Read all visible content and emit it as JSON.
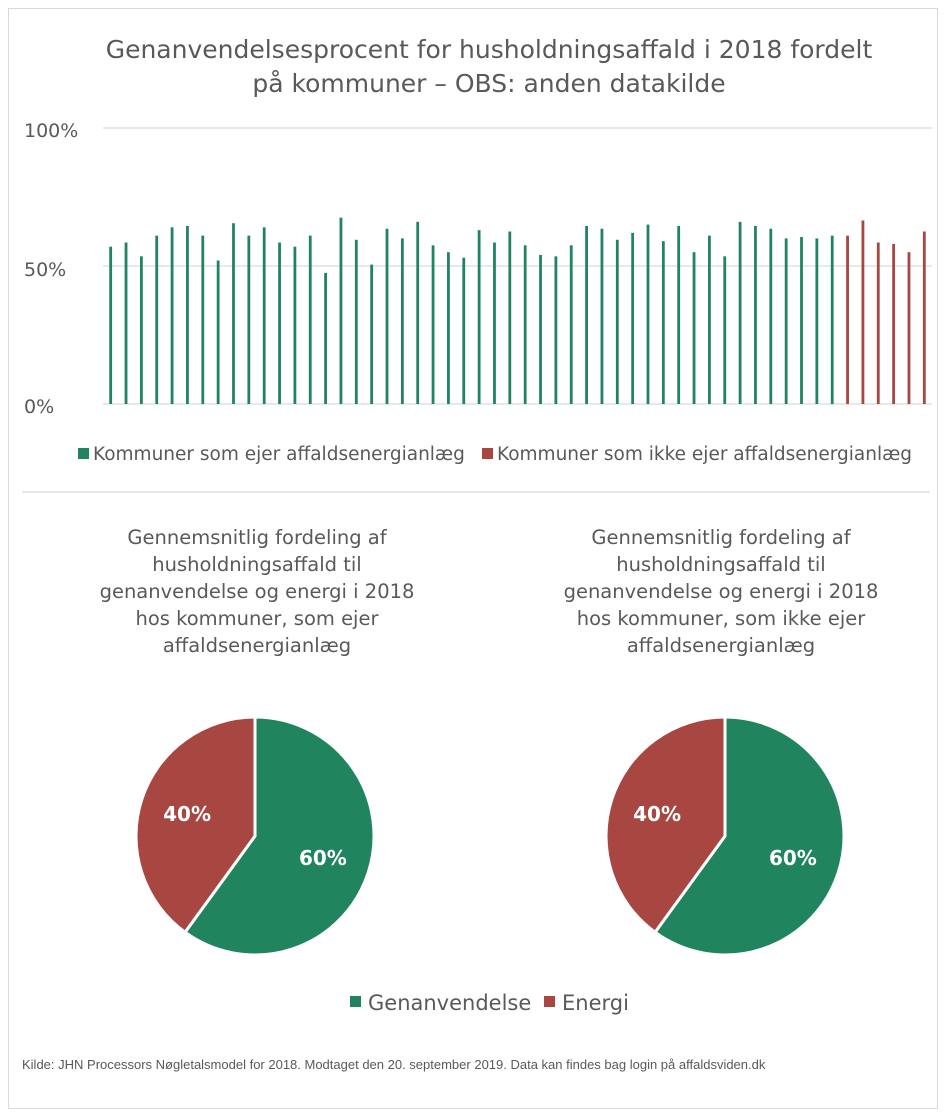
{
  "chart_data": [
    {
      "type": "bar",
      "title": "Genanvendelsesprocent for husholdningsaffald i 2018 fordelt på kommuner  – OBS: anden datakilde",
      "title_lines": [
        "Genanvendelsesprocent for husholdningsaffald i 2018 fordelt",
        "på kommuner  – OBS: anden datakilde"
      ],
      "ylim": [
        0,
        100
      ],
      "ytick_labels": [
        "0%",
        "50%",
        "100%"
      ],
      "grid": true,
      "legend_position": "bottom",
      "series": [
        {
          "name": "Kommuner som ejer affaldsenergianlæg",
          "color": "#20845F",
          "values": [
            57,
            58.5,
            53.5,
            61,
            64,
            64.5,
            61,
            52,
            65.5,
            61,
            64,
            58.5,
            57,
            61,
            47.5,
            67.5,
            59.5,
            50.5,
            63.5,
            60,
            66,
            57.5,
            55,
            53,
            63,
            58.5,
            62.5,
            57.5,
            54,
            53.5,
            57.5,
            64.5,
            63.5,
            59.5,
            62,
            65,
            59,
            64.5,
            55,
            61,
            53.5,
            66,
            64.5,
            63.5,
            60,
            60.5,
            60,
            61
          ]
        },
        {
          "name": "Kommuner som ikke ejer affaldsenergianlæg",
          "color": "#A84741",
          "values": [
            61,
            66.5,
            58.5,
            58,
            55,
            62.5
          ]
        }
      ]
    },
    {
      "type": "pie",
      "title": "Gennemsnitlig fordeling af husholdningsaffald til genanvendelse og energi i 2018 hos kommuner, som ejer affaldsenergianlæg",
      "title_lines": [
        "Gennemsnitlig fordeling af",
        "husholdningsaffald til",
        "genanvendelse og energi i 2018",
        "hos kommuner, som ejer",
        "affaldsenergianlæg"
      ],
      "labels": [
        "Genanvendelse",
        "Energi"
      ],
      "values": [
        60,
        40
      ],
      "value_labels": [
        "60%",
        "40%"
      ],
      "colors": [
        "#20845F",
        "#A84741"
      ]
    },
    {
      "type": "pie",
      "title": "Gennemsnitlig fordeling af husholdningsaffald til genanvendelse og energi i 2018 hos kommuner, som ikke ejer affaldsenergianlæg",
      "title_lines": [
        "Gennemsnitlig fordeling af",
        "husholdningsaffald til",
        "genanvendelse og energi i 2018",
        "hos kommuner, som ikke ejer",
        "affaldsenergianlæg"
      ],
      "labels": [
        "Genanvendelse",
        "Energi"
      ],
      "values": [
        60,
        40
      ],
      "value_labels": [
        "60%",
        "40%"
      ],
      "colors": [
        "#20845F",
        "#A84741"
      ]
    }
  ],
  "pie_legend": [
    {
      "label": "Genanvendelse",
      "color": "#20845F"
    },
    {
      "label": "Energi",
      "color": "#A84741"
    }
  ],
  "source": "Kilde: JHN Processors Nøgletalsmodel for 2018. Modtaget den 20. september 2019. Data kan findes bag login på affaldsviden.dk"
}
